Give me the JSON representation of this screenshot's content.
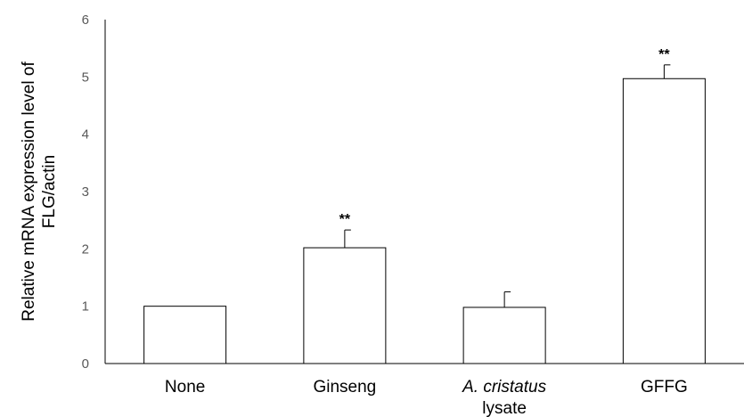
{
  "chart_data": {
    "type": "bar",
    "categories": [
      {
        "label": "None",
        "italic_part": "",
        "line2": ""
      },
      {
        "label": "Ginseng",
        "italic_part": "",
        "line2": ""
      },
      {
        "label": "",
        "italic_part": "A. cristatus",
        "line2": "lysate"
      },
      {
        "label": "GFFG",
        "italic_part": "",
        "line2": ""
      }
    ],
    "values": [
      1.0,
      2.02,
      0.98,
      4.97
    ],
    "errors": [
      0.0,
      0.31,
      0.27,
      0.24
    ],
    "significance": [
      "",
      "**",
      "",
      "**"
    ],
    "ylabel_lines": [
      "Relative mRNA expression level of",
      "FLG/actin"
    ],
    "ylim": [
      0,
      6
    ],
    "yticks": [
      "0",
      "1",
      "2",
      "3",
      "4",
      "5",
      "6"
    ],
    "grid": false,
    "colors": {
      "bar_fill": "#ffffff",
      "bar_stroke": "#000000",
      "axis": "#000000",
      "tick_text": "#595959"
    }
  }
}
